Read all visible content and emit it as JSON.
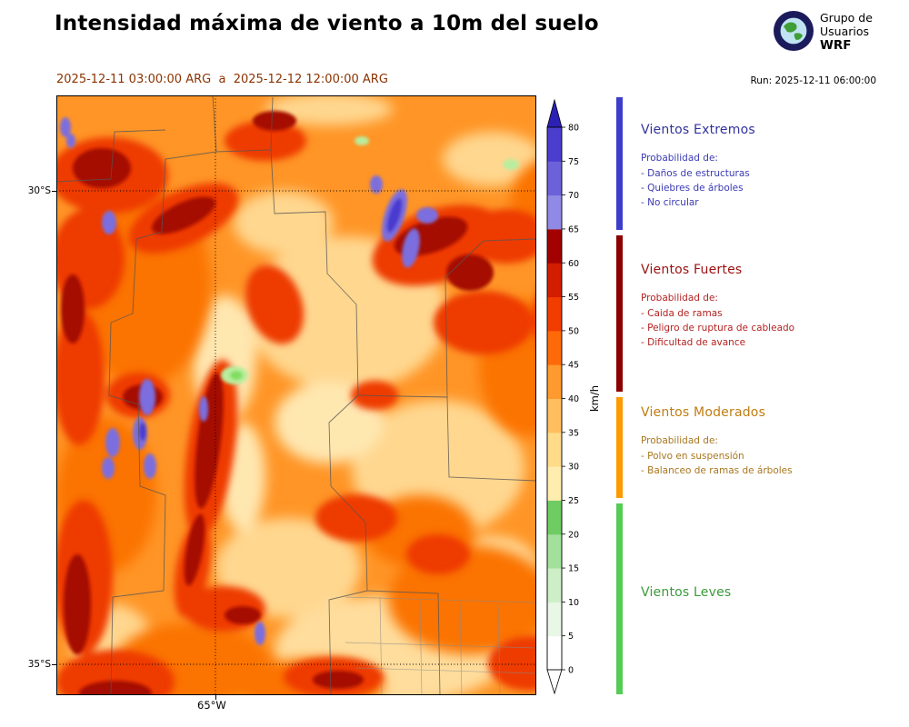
{
  "header": {
    "title": "Intensidad máxima de viento a 10m del suelo",
    "period": "2025-12-11 03:00:00 ARG  a  2025-12-12 12:00:00 ARG",
    "run_label": "Run: 2025-12-11 06:00:00",
    "logo": {
      "line1": "Grupo de",
      "line2": "Usuarios",
      "line3": "WRF"
    }
  },
  "map": {
    "lat_labels": [
      "30°S",
      "35°S"
    ],
    "lon_labels": [
      "65°W"
    ]
  },
  "colorbar": {
    "unit": "km/h",
    "max": 80,
    "ticks": [
      0,
      5,
      10,
      15,
      20,
      25,
      30,
      35,
      40,
      45,
      50,
      55,
      60,
      65,
      70,
      75,
      80
    ],
    "segment_colors": [
      "#ffffff",
      "#e9f7e6",
      "#cdeec6",
      "#a3e09b",
      "#6ecc62",
      "#ffedb0",
      "#ffdb8a",
      "#ffbf5e",
      "#ff9a2e",
      "#ff6a08",
      "#f23d00",
      "#d31d00",
      "#a30000",
      "#9189e6",
      "#6d61da",
      "#4b3ecf"
    ],
    "over_color": "#2d21b5",
    "under_color": "#ffffff"
  },
  "legend": {
    "sections": [
      {
        "title": "Vientos Extremos",
        "intro": "Probabilidad de:",
        "items": [
          "- Daños de estructuras",
          "- Quiebres de árboles",
          "- No circular"
        ],
        "title_color": "#32329e",
        "text_color": "#3a3ab4",
        "strip_color": "#3d3dcc"
      },
      {
        "title": "Vientos Fuertes",
        "intro": "Probabilidad de:",
        "items": [
          "- Caida de ramas",
          "- Peligro de ruptura de cableado",
          "- Dificultad de avance"
        ],
        "title_color": "#9e1010",
        "text_color": "#b42222",
        "strip_color": "#8b0000"
      },
      {
        "title": "Vientos Moderados",
        "intro": "Probabilidad de:",
        "items": [
          "- Polvo en suspensión",
          "- Balanceo de ramas de árboles"
        ],
        "title_color": "#c07d10",
        "text_color": "#a8761e",
        "strip_color": "#ff9900"
      },
      {
        "title": "Vientos Leves",
        "intro": "",
        "items": [],
        "title_color": "#3b9a3b",
        "text_color": "#3b9a3b",
        "strip_color": "#55cc55"
      }
    ]
  }
}
